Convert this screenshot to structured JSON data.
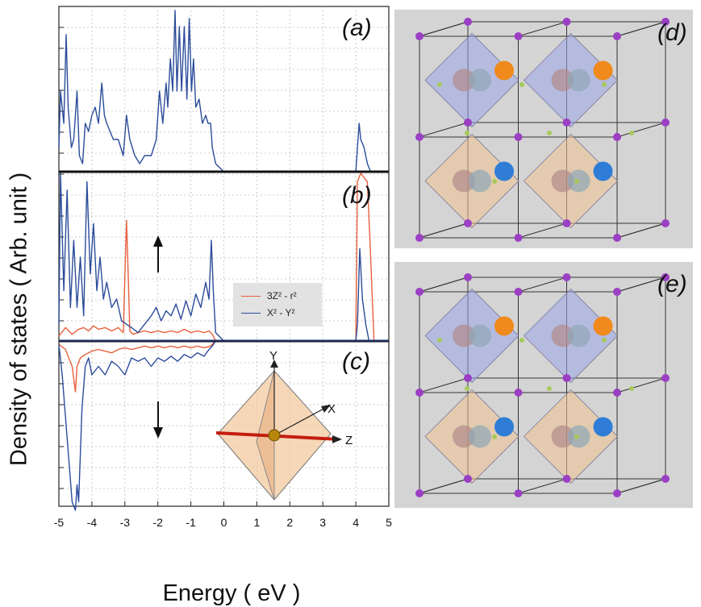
{
  "figure": {
    "ylabel": "Density of states ( Arb. unit )",
    "xlabel": "Energy ( eV )",
    "panels": [
      "(a)",
      "(b)",
      "(c)",
      "(d)",
      "(e)"
    ],
    "legend": [
      {
        "label": "3Z² - r²",
        "color": "#e8603c"
      },
      {
        "label": "X² - Y²",
        "color": "#2b4c9a"
      }
    ],
    "octahedron_axes": [
      "Y",
      "X",
      "Z"
    ]
  },
  "chart_data": [
    {
      "type": "line",
      "panel": "(a)",
      "xlim": [
        -5,
        5
      ],
      "xticks": [
        -5,
        -4,
        -3,
        -2,
        -1,
        0,
        1,
        2,
        3,
        4,
        5
      ],
      "grid": true,
      "series": [
        {
          "color": "#2b4c9a",
          "x": [
            -5.0,
            -4.95,
            -4.85,
            -4.78,
            -4.72,
            -4.62,
            -4.55,
            -4.45,
            -4.38,
            -4.28,
            -4.2,
            -4.1,
            -4.0,
            -3.9,
            -3.8,
            -3.7,
            -3.62,
            -3.55,
            -3.45,
            -3.35,
            -3.2,
            -3.05,
            -2.95,
            -2.85,
            -2.7,
            -2.55,
            -2.4,
            -2.2,
            -2.05,
            -1.95,
            -1.85,
            -1.75,
            -1.7,
            -1.62,
            -1.55,
            -1.48,
            -1.42,
            -1.35,
            -1.28,
            -1.2,
            -1.12,
            -1.05,
            -0.98,
            -0.92,
            -0.85,
            -0.75,
            -0.65,
            -0.55,
            -0.48,
            -0.4,
            -0.35,
            -0.25,
            -0.1,
            0.0,
            4.0,
            4.05,
            4.1,
            4.15,
            4.25,
            4.35,
            4.45,
            5.0
          ],
          "y": [
            0.15,
            0.5,
            0.3,
            0.85,
            0.4,
            0.15,
            0.2,
            0.5,
            0.1,
            0.05,
            0.3,
            0.25,
            0.35,
            0.4,
            0.3,
            0.55,
            0.35,
            0.3,
            0.25,
            0.2,
            0.2,
            0.1,
            0.35,
            0.2,
            0.1,
            0.05,
            0.1,
            0.1,
            0.2,
            0.5,
            0.3,
            0.55,
            0.4,
            0.7,
            0.5,
            1.0,
            0.5,
            0.9,
            0.5,
            0.9,
            0.45,
            0.95,
            0.5,
            0.7,
            0.4,
            0.45,
            0.3,
            0.35,
            0.3,
            0.3,
            0.15,
            0.05,
            0.02,
            0.0,
            0.0,
            0.15,
            0.3,
            0.2,
            0.15,
            0.05,
            0.0,
            0.0
          ]
        }
      ]
    },
    {
      "type": "line",
      "panel": "(b)",
      "xlim": [
        -5,
        5
      ],
      "grid": true,
      "annotations": [
        "up-arrow"
      ],
      "series": [
        {
          "name": "3Z² - r²",
          "color": "#e8603c",
          "x": [
            -5.0,
            -4.8,
            -4.6,
            -4.4,
            -4.25,
            -4.1,
            -3.95,
            -3.8,
            -3.6,
            -3.4,
            -3.2,
            -3.05,
            -2.95,
            -2.9,
            -2.85,
            -2.75,
            -2.6,
            -2.4,
            -2.2,
            -2.0,
            -1.8,
            -1.6,
            -1.4,
            -1.2,
            -1.0,
            -0.8,
            -0.6,
            -0.45,
            -0.35,
            -0.3,
            -0.25,
            0.0,
            4.0,
            4.05,
            4.15,
            4.35,
            4.45,
            4.55,
            5.0
          ],
          "y": [
            0.03,
            0.08,
            0.04,
            0.07,
            0.08,
            0.06,
            0.09,
            0.07,
            0.08,
            0.06,
            0.08,
            0.05,
            0.72,
            0.4,
            0.06,
            0.04,
            0.05,
            0.06,
            0.05,
            0.06,
            0.05,
            0.06,
            0.05,
            0.07,
            0.05,
            0.06,
            0.05,
            0.06,
            0.04,
            0.02,
            0.0,
            0.0,
            0.0,
            0.95,
            1.0,
            0.95,
            0.5,
            0.0,
            0.0
          ]
        },
        {
          "name": "X² - Y²",
          "color": "#2b4c9a",
          "x": [
            -5.0,
            -4.95,
            -4.85,
            -4.75,
            -4.65,
            -4.55,
            -4.45,
            -4.35,
            -4.25,
            -4.15,
            -4.05,
            -3.95,
            -3.85,
            -3.75,
            -3.65,
            -3.55,
            -3.4,
            -3.25,
            -3.1,
            -2.95,
            -2.8,
            -2.6,
            -2.4,
            -2.2,
            -2.05,
            -1.9,
            -1.75,
            -1.6,
            -1.45,
            -1.3,
            -1.15,
            -1.0,
            -0.85,
            -0.7,
            -0.55,
            -0.45,
            -0.38,
            -0.32,
            -0.25,
            0.0,
            4.0,
            4.05,
            4.12,
            4.2,
            4.3,
            4.4,
            5.0
          ],
          "y": [
            0.1,
            1.0,
            0.3,
            0.9,
            0.2,
            0.6,
            0.2,
            0.5,
            0.15,
            0.95,
            0.4,
            0.7,
            0.3,
            0.5,
            0.25,
            0.35,
            0.2,
            0.25,
            0.12,
            0.1,
            0.08,
            0.05,
            0.1,
            0.15,
            0.2,
            0.12,
            0.18,
            0.15,
            0.22,
            0.13,
            0.24,
            0.15,
            0.28,
            0.2,
            0.35,
            0.25,
            0.6,
            0.3,
            0.05,
            0.0,
            0.0,
            0.1,
            0.55,
            0.25,
            0.1,
            0.0,
            0.0
          ]
        }
      ]
    },
    {
      "type": "line",
      "panel": "(c)",
      "xlim": [
        -5,
        5
      ],
      "grid": true,
      "annotations": [
        "down-arrow"
      ],
      "series": [
        {
          "name": "3Z² - r²",
          "color": "#e8603c",
          "x": [
            -5.0,
            -4.8,
            -4.6,
            -4.5,
            -4.45,
            -4.35,
            -4.2,
            -4.0,
            -3.8,
            -3.6,
            -3.4,
            -3.2,
            -3.0,
            -2.8,
            -2.6,
            -2.4,
            -2.2,
            -2.0,
            -1.8,
            -1.6,
            -1.4,
            -1.2,
            -1.0,
            -0.8,
            -0.6,
            -0.4,
            -0.25,
            0.0,
            5.0
          ],
          "y": [
            -0.02,
            -0.05,
            -0.15,
            -0.3,
            -0.15,
            -0.1,
            -0.08,
            -0.06,
            -0.05,
            -0.06,
            -0.07,
            -0.05,
            -0.04,
            -0.05,
            -0.04,
            -0.03,
            -0.04,
            -0.03,
            -0.04,
            -0.03,
            -0.04,
            -0.03,
            -0.04,
            -0.03,
            -0.04,
            -0.03,
            0.0,
            0.0,
            0.0
          ]
        },
        {
          "name": "X² - Y²",
          "color": "#2b4c9a",
          "x": [
            -5.0,
            -4.9,
            -4.8,
            -4.7,
            -4.6,
            -4.5,
            -4.45,
            -4.4,
            -4.3,
            -4.2,
            -4.1,
            -4.0,
            -3.8,
            -3.6,
            -3.4,
            -3.2,
            -3.0,
            -2.8,
            -2.6,
            -2.4,
            -2.2,
            -2.0,
            -1.8,
            -1.6,
            -1.4,
            -1.2,
            -1.0,
            -0.8,
            -0.6,
            -0.45,
            -0.35,
            -0.25,
            0.0,
            5.0
          ],
          "y": [
            -0.02,
            -0.2,
            -0.45,
            -0.7,
            -0.95,
            -1.0,
            -0.85,
            -0.95,
            -0.4,
            -0.15,
            -0.1,
            -0.2,
            -0.15,
            -0.2,
            -0.12,
            -0.15,
            -0.2,
            -0.1,
            -0.12,
            -0.1,
            -0.15,
            -0.1,
            -0.12,
            -0.09,
            -0.12,
            -0.08,
            -0.1,
            -0.07,
            -0.09,
            -0.05,
            -0.03,
            0.0,
            0.0,
            0.0
          ]
        }
      ]
    }
  ]
}
